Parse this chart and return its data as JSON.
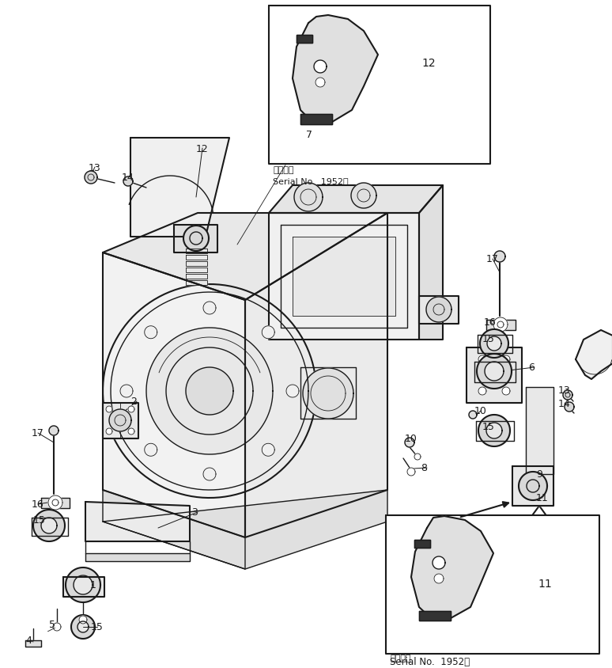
{
  "bg_color": "#ffffff",
  "line_color": "#1a1a1a",
  "fig_width": 7.74,
  "fig_height": 8.45,
  "dpi": 100,
  "inset1_caption1": "適用号機",
  "inset1_caption2": "Serial No.  1952～",
  "inset2_caption1": "適用号機",
  "inset2_caption2": "Serial No.  1952～"
}
